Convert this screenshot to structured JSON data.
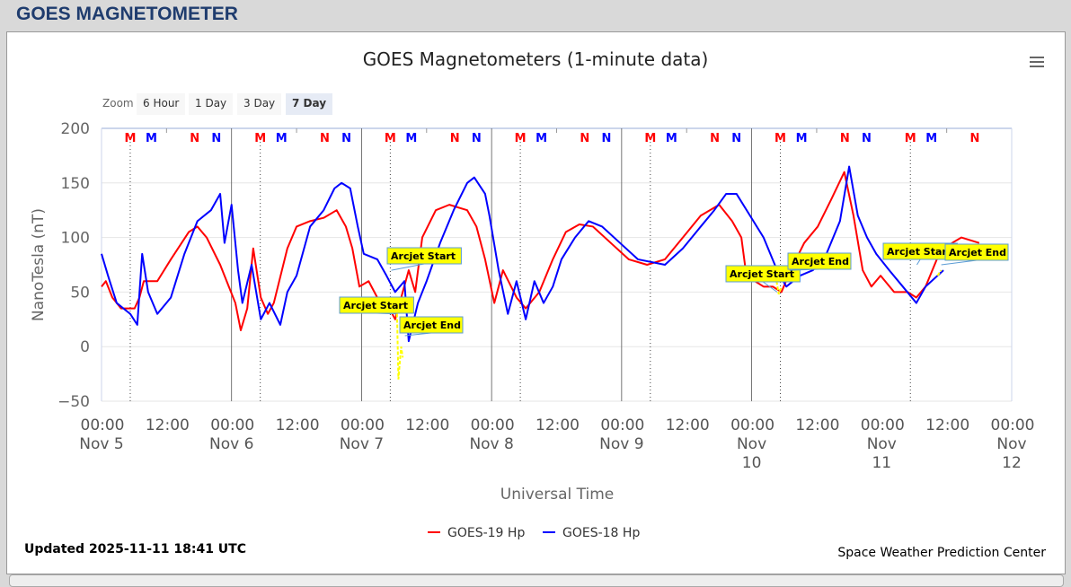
{
  "header": {
    "title": "GOES MAGNETOMETER"
  },
  "zoom": {
    "label": "Zoom",
    "buttons": [
      "6 Hour",
      "1 Day",
      "3 Day",
      "7 Day"
    ],
    "selected": "7 Day"
  },
  "footer": {
    "updated": "Updated 2025-11-11 18:41 UTC",
    "credit": "Space Weather Prediction Center"
  },
  "colors": {
    "goes19": "#ff0000",
    "goes18": "#0000ff",
    "arcjet": "#ffff00"
  },
  "chart_data": {
    "type": "line",
    "title": "GOES Magnetometers (1-minute data)",
    "xlabel": "Universal Time",
    "ylabel": "NanoTesla (nT)",
    "ylim": [
      -50,
      200
    ],
    "yticks": [
      -50,
      0,
      50,
      100,
      150,
      200
    ],
    "xlim_hours": [
      0,
      168
    ],
    "xticks": [
      [
        "00:00",
        "Nov 5"
      ],
      [
        "12:00",
        ""
      ],
      [
        "00:00",
        "Nov 6"
      ],
      [
        "12:00",
        ""
      ],
      [
        "00:00",
        "Nov 7"
      ],
      [
        "12:00",
        ""
      ],
      [
        "00:00",
        "Nov 8"
      ],
      [
        "12:00",
        ""
      ],
      [
        "00:00",
        "Nov 9"
      ],
      [
        "12:00",
        ""
      ],
      [
        "00:00",
        "Nov",
        "10"
      ],
      [
        "12:00",
        ""
      ],
      [
        "00:00",
        "Nov",
        "11"
      ],
      [
        "12:00",
        ""
      ],
      [
        "00:00",
        "Nov",
        "12"
      ]
    ],
    "legend": "bottom-center",
    "series": [
      {
        "name": "GOES-19 Hp",
        "color": "#ff0000",
        "points": [
          [
            0,
            55
          ],
          [
            0.8,
            60
          ],
          [
            2,
            45
          ],
          [
            3.6,
            35
          ],
          [
            6.1,
            35
          ],
          [
            7,
            45
          ],
          [
            7.8,
            60
          ],
          [
            10.3,
            60
          ],
          [
            12.8,
            80
          ],
          [
            16.1,
            105
          ],
          [
            17.7,
            110
          ],
          [
            19.4,
            100
          ],
          [
            21.9,
            75
          ],
          [
            23.5,
            55
          ],
          [
            24.7,
            40
          ],
          [
            25.7,
            15
          ],
          [
            26.9,
            35
          ],
          [
            28,
            90
          ],
          [
            29.4,
            45
          ],
          [
            30.7,
            30
          ],
          [
            31.8,
            40
          ],
          [
            34.3,
            90
          ],
          [
            36,
            110
          ],
          [
            38.5,
            115
          ],
          [
            41,
            118
          ],
          [
            43.4,
            125
          ],
          [
            45.1,
            110
          ],
          [
            46.3,
            90
          ],
          [
            47.6,
            55
          ],
          [
            49.3,
            60
          ],
          [
            50.9,
            45
          ],
          [
            52.6,
            40
          ],
          [
            54.2,
            25
          ],
          [
            56.7,
            70
          ],
          [
            57.9,
            50
          ],
          [
            59.2,
            100
          ],
          [
            61.7,
            125
          ],
          [
            64.2,
            130
          ],
          [
            67.5,
            125
          ],
          [
            69.2,
            110
          ],
          [
            70.8,
            80
          ],
          [
            72.5,
            40
          ],
          [
            74.1,
            70
          ],
          [
            76.6,
            45
          ],
          [
            78.3,
            35
          ],
          [
            80.8,
            50
          ],
          [
            83.3,
            80
          ],
          [
            85.7,
            105
          ],
          [
            88.2,
            112
          ],
          [
            90.7,
            110
          ],
          [
            94,
            95
          ],
          [
            97.3,
            80
          ],
          [
            100.7,
            75
          ],
          [
            104,
            80
          ],
          [
            107.3,
            100
          ],
          [
            110.6,
            120
          ],
          [
            114,
            130
          ],
          [
            116.4,
            115
          ],
          [
            118.1,
            100
          ],
          [
            118.9,
            70
          ],
          [
            120.6,
            60
          ],
          [
            122.2,
            55
          ],
          [
            123.9,
            55
          ],
          [
            125.5,
            50
          ],
          [
            127.2,
            70
          ],
          [
            129.7,
            95
          ],
          [
            132.2,
            110
          ],
          [
            134.7,
            135
          ],
          [
            137.1,
            160
          ],
          [
            138.8,
            120
          ],
          [
            140.5,
            70
          ],
          [
            142.1,
            55
          ],
          [
            143.8,
            65
          ],
          [
            146.3,
            50
          ],
          [
            148.8,
            50
          ],
          [
            150.4,
            45
          ],
          [
            152.1,
            55
          ],
          [
            154.6,
            85
          ],
          [
            157,
            95
          ],
          [
            158.7,
            100
          ],
          [
            162,
            95
          ]
        ]
      },
      {
        "name": "GOES-18 Hp",
        "color": "#0000ff",
        "points": [
          [
            0,
            85
          ],
          [
            1.2,
            65
          ],
          [
            2.8,
            40
          ],
          [
            5.3,
            30
          ],
          [
            6.6,
            20
          ],
          [
            7.5,
            85
          ],
          [
            8.6,
            50
          ],
          [
            10.3,
            30
          ],
          [
            12.8,
            45
          ],
          [
            15.3,
            85
          ],
          [
            17.7,
            115
          ],
          [
            20.2,
            125
          ],
          [
            21.9,
            140
          ],
          [
            22.7,
            95
          ],
          [
            24,
            130
          ],
          [
            25.2,
            70
          ],
          [
            26,
            40
          ],
          [
            27.7,
            75
          ],
          [
            29.4,
            25
          ],
          [
            31,
            40
          ],
          [
            33,
            20
          ],
          [
            34.3,
            50
          ],
          [
            36,
            65
          ],
          [
            38.5,
            110
          ],
          [
            41,
            125
          ],
          [
            43,
            145
          ],
          [
            44.3,
            150
          ],
          [
            45.9,
            145
          ],
          [
            47.3,
            110
          ],
          [
            48.4,
            85
          ],
          [
            50.9,
            80
          ],
          [
            52.6,
            65
          ],
          [
            54.2,
            50
          ],
          [
            55.9,
            60
          ],
          [
            56.7,
            5
          ],
          [
            58.4,
            40
          ],
          [
            60,
            60
          ],
          [
            62.5,
            95
          ],
          [
            65,
            125
          ],
          [
            67.5,
            150
          ],
          [
            68.8,
            155
          ],
          [
            70.8,
            140
          ],
          [
            71.6,
            120
          ],
          [
            73.3,
            70
          ],
          [
            75,
            30
          ],
          [
            76.6,
            60
          ],
          [
            78.3,
            25
          ],
          [
            79.9,
            60
          ],
          [
            81.6,
            40
          ],
          [
            83.3,
            55
          ],
          [
            84.9,
            80
          ],
          [
            87.4,
            100
          ],
          [
            89.9,
            115
          ],
          [
            92.4,
            110
          ],
          [
            95.7,
            95
          ],
          [
            99,
            80
          ],
          [
            104,
            75
          ],
          [
            107.3,
            90
          ],
          [
            110.6,
            110
          ],
          [
            113.1,
            125
          ],
          [
            115.3,
            140
          ],
          [
            117.2,
            140
          ],
          [
            119.7,
            120
          ],
          [
            122.2,
            100
          ],
          [
            124.7,
            70
          ],
          [
            126.4,
            55
          ],
          [
            128.9,
            65
          ],
          [
            131.3,
            70
          ],
          [
            133.8,
            85
          ],
          [
            136.3,
            115
          ],
          [
            138,
            165
          ],
          [
            139.6,
            120
          ],
          [
            141.3,
            100
          ],
          [
            143,
            85
          ],
          [
            145.4,
            70
          ],
          [
            147.9,
            55
          ],
          [
            150.4,
            40
          ],
          [
            152.1,
            55
          ],
          [
            155.4,
            70
          ]
        ]
      }
    ],
    "arcjet_segments": [
      [
        [
          54.5,
          40
        ],
        [
          54.8,
          -30
        ],
        [
          55.3,
          0
        ],
        [
          55.6,
          -10
        ]
      ],
      [
        [
          124.6,
          60
        ],
        [
          125,
          48
        ],
        [
          125.5,
          55
        ]
      ],
      [
        [
          154.3,
          65
        ],
        [
          155,
          70
        ]
      ]
    ],
    "markers": [
      {
        "label": "M",
        "color": "#ff0000",
        "hours": [
          5.3,
          29.3,
          53.3,
          77.3,
          101.3,
          125.3,
          149.3
        ]
      },
      {
        "label": "M",
        "color": "#0000ff",
        "hours": [
          9.2,
          33.2,
          57.2,
          81.2,
          105.2,
          129.2,
          153.2
        ]
      },
      {
        "label": "N",
        "color": "#ff0000",
        "hours": [
          17.2,
          41.2,
          65.2,
          89.2,
          113.2,
          137.2,
          161.2
        ]
      },
      {
        "label": "N",
        "color": "#0000ff",
        "hours": [
          21.2,
          45.2,
          69.2,
          93.2,
          117.2,
          141.2
        ]
      }
    ],
    "annotations": [
      {
        "text": "Arcjet Start",
        "hour": 54.3,
        "value": 30
      },
      {
        "text": "Arcjet End",
        "hour": 56,
        "value": 10
      },
      {
        "text": "Arcjet Start",
        "hour": 53.5,
        "value": 70
      },
      {
        "text": "Arcjet Start",
        "hour": 124.7,
        "value": 50
      },
      {
        "text": "Arcjet End",
        "hour": 127,
        "value": 70
      },
      {
        "text": "Arcjet Start",
        "hour": 150.5,
        "value": 75
      },
      {
        "text": "Arcjet End",
        "hour": 155,
        "value": 75
      }
    ]
  }
}
